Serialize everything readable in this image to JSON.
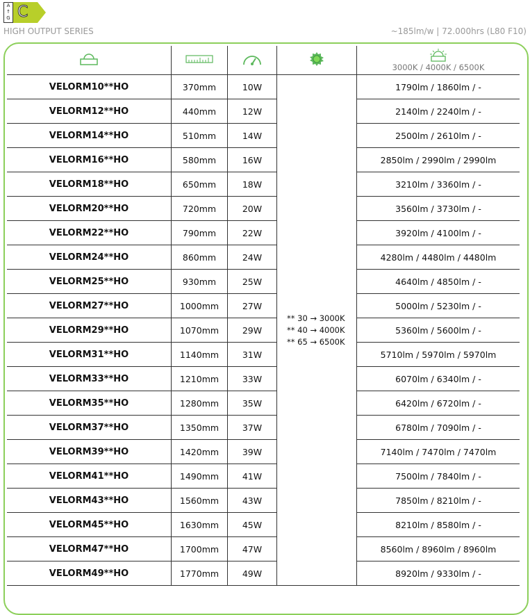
{
  "energy_label": {
    "scale_top": "A",
    "scale_bottom": "G",
    "class": "C",
    "color": "#b8cf2a"
  },
  "header": {
    "series": "HIGH OUTPUT SERIES",
    "spec": "~185lm/w | 72.000hrs (L80 F10)"
  },
  "columns": {
    "model_icon": "lamp-icon",
    "length_icon": "ruler-icon",
    "power_icon": "gauge-icon",
    "color_icon": "sun-icon",
    "flux_icon": "sunrise-icon",
    "flux_label": "3000K / 4000K / 6500K"
  },
  "accent": "#5cb85c",
  "color_key": [
    "** 30 → 3000K",
    "** 40 → 4000K",
    "** 65 → 6500K"
  ],
  "rows": [
    [
      "VELORM10**HO",
      "370mm",
      "10W",
      "1790lm / 1860lm / -"
    ],
    [
      "VELORM12**HO",
      "440mm",
      "12W",
      "2140lm / 2240lm / -"
    ],
    [
      "VELORM14**HO",
      "510mm",
      "14W",
      "2500lm / 2610lm / -"
    ],
    [
      "VELORM16**HO",
      "580mm",
      "16W",
      "2850lm / 2990lm / 2990lm"
    ],
    [
      "VELORM18**HO",
      "650mm",
      "18W",
      "3210lm / 3360lm / -"
    ],
    [
      "VELORM20**HO",
      "720mm",
      "20W",
      "3560lm / 3730lm / -"
    ],
    [
      "VELORM22**HO",
      "790mm",
      "22W",
      "3920lm / 4100lm / -"
    ],
    [
      "VELORM24**HO",
      "860mm",
      "24W",
      "4280lm / 4480lm / 4480lm"
    ],
    [
      "VELORM25**HO",
      "930mm",
      "25W",
      "4640lm / 4850lm / -"
    ],
    [
      "VELORM27**HO",
      "1000mm",
      "27W",
      "5000lm / 5230lm / -"
    ],
    [
      "VELORM29**HO",
      "1070mm",
      "29W",
      "5360lm / 5600lm / -"
    ],
    [
      "VELORM31**HO",
      "1140mm",
      "31W",
      "5710lm / 5970lm / 5970lm"
    ],
    [
      "VELORM33**HO",
      "1210mm",
      "33W",
      "6070lm / 6340lm / -"
    ],
    [
      "VELORM35**HO",
      "1280mm",
      "35W",
      "6420lm / 6720lm / -"
    ],
    [
      "VELORM37**HO",
      "1350mm",
      "37W",
      "6780lm / 7090lm / -"
    ],
    [
      "VELORM39**HO",
      "1420mm",
      "39W",
      "7140lm / 7470lm / 7470lm"
    ],
    [
      "VELORM41**HO",
      "1490mm",
      "41W",
      "7500lm / 7840lm / -"
    ],
    [
      "VELORM43**HO",
      "1560mm",
      "43W",
      "7850lm / 8210lm / -"
    ],
    [
      "VELORM45**HO",
      "1630mm",
      "45W",
      "8210lm / 8580lm / -"
    ],
    [
      "VELORM47**HO",
      "1700mm",
      "47W",
      "8560lm / 8960lm / 8960lm"
    ],
    [
      "VELORM49**HO",
      "1770mm",
      "49W",
      "8920lm / 9330lm / -"
    ]
  ]
}
